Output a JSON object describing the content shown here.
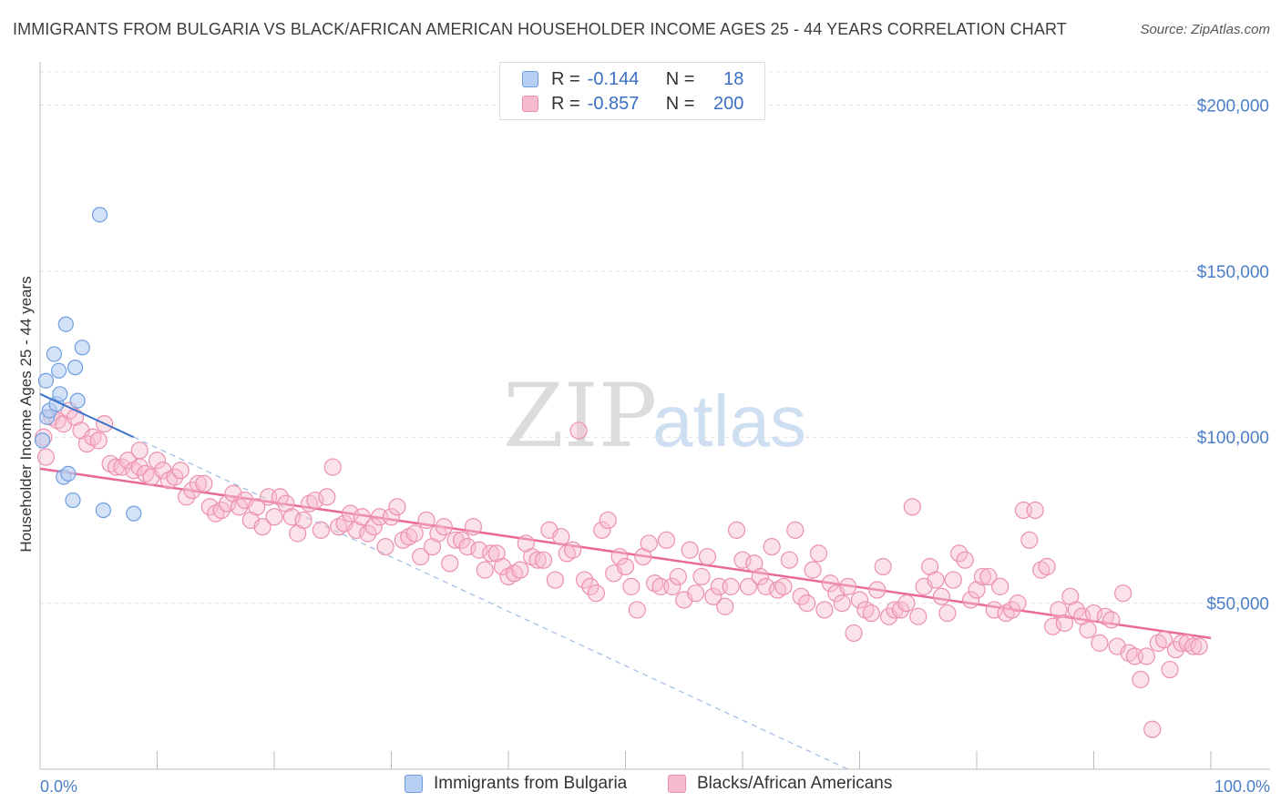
{
  "title": "IMMIGRANTS FROM BULGARIA VS BLACK/AFRICAN AMERICAN HOUSEHOLDER INCOME AGES 25 - 44 YEARS CORRELATION CHART",
  "source": "Source: ZipAtlas.com",
  "watermark": {
    "zip": "ZIP",
    "atlas": "atlas"
  },
  "colors": {
    "blue_fill": "#b7cff2",
    "blue_stroke": "#6f9ee0",
    "blue_line": "#3a73c9",
    "pink_fill": "#f6bccd",
    "pink_stroke": "#ec8fb0",
    "pink_line": "#e8699a",
    "tick_text": "#4a7ec8",
    "grid": "#e2e2e2"
  },
  "legend": {
    "r_label": "R =",
    "n_label": "N =",
    "rows": [
      {
        "series": "Immigrants from Bulgaria",
        "r": "-0.144",
        "n": "18"
      },
      {
        "series": "Blacks/African Americans",
        "r": "-0.857",
        "n": "200"
      }
    ]
  },
  "chart_data": {
    "type": "scatter",
    "title": "IMMIGRANTS FROM BULGARIA VS BLACK/AFRICAN AMERICAN HOUSEHOLDER INCOME AGES 25 - 44 YEARS CORRELATION CHART",
    "xlabel": "",
    "ylabel": "Householder Income Ages 25 - 44 years",
    "xlim": [
      0,
      100
    ],
    "ylim": [
      0,
      210000
    ],
    "x_tick_labels": [
      "0.0%",
      "100.0%"
    ],
    "y_ticks": [
      50000,
      100000,
      150000,
      200000
    ],
    "y_tick_labels": [
      "$50,000",
      "$100,000",
      "$150,000",
      "$200,000"
    ],
    "grid": true,
    "legend_position": "top-center",
    "series": [
      {
        "name": "Immigrants from Bulgaria",
        "color": "#b7cff2",
        "points": [
          [
            0.2,
            99000
          ],
          [
            0.5,
            117000
          ],
          [
            0.6,
            106000
          ],
          [
            0.8,
            108000
          ],
          [
            1.2,
            125000
          ],
          [
            1.4,
            110000
          ],
          [
            1.6,
            120000
          ],
          [
            1.7,
            113000
          ],
          [
            2.0,
            88000
          ],
          [
            2.2,
            134000
          ],
          [
            2.4,
            89000
          ],
          [
            2.8,
            81000
          ],
          [
            3.0,
            121000
          ],
          [
            3.2,
            111000
          ],
          [
            3.6,
            127000
          ],
          [
            5.1,
            167000
          ],
          [
            5.4,
            78000
          ],
          [
            8.0,
            77000
          ]
        ],
        "trend": {
          "x0": 0,
          "y0": 113000,
          "x1": 8.0,
          "y1": 100000,
          "dashed_extension_to": [
            69,
            0
          ]
        }
      },
      {
        "name": "Blacks/African Americans",
        "color": "#f6bccd",
        "points": [
          [
            0.3,
            100000
          ],
          [
            0.5,
            94000
          ],
          [
            1.0,
            106000
          ],
          [
            1.5,
            105000
          ],
          [
            2.0,
            104000
          ],
          [
            2.5,
            108000
          ],
          [
            3.0,
            106000
          ],
          [
            3.5,
            102000
          ],
          [
            4.0,
            98000
          ],
          [
            4.5,
            100000
          ],
          [
            5.0,
            99000
          ],
          [
            5.5,
            104000
          ],
          [
            6.0,
            92000
          ],
          [
            6.5,
            91000
          ],
          [
            7.0,
            91000
          ],
          [
            7.5,
            93000
          ],
          [
            8.0,
            90000
          ],
          [
            8.5,
            91000
          ],
          [
            8.5,
            96000
          ],
          [
            9.0,
            89000
          ],
          [
            9.5,
            88000
          ],
          [
            10.0,
            93000
          ],
          [
            10.5,
            90000
          ],
          [
            11.0,
            87000
          ],
          [
            11.5,
            88000
          ],
          [
            12.0,
            90000
          ],
          [
            12.5,
            82000
          ],
          [
            13.0,
            84000
          ],
          [
            13.5,
            86000
          ],
          [
            14.0,
            86000
          ],
          [
            14.5,
            79000
          ],
          [
            15.0,
            77000
          ],
          [
            15.5,
            78000
          ],
          [
            16.0,
            80000
          ],
          [
            16.5,
            83000
          ],
          [
            17.0,
            79000
          ],
          [
            17.5,
            81000
          ],
          [
            18.0,
            75000
          ],
          [
            18.5,
            79000
          ],
          [
            19.0,
            73000
          ],
          [
            19.5,
            82000
          ],
          [
            20.0,
            76000
          ],
          [
            20.5,
            82000
          ],
          [
            21.0,
            80000
          ],
          [
            21.5,
            76000
          ],
          [
            22.0,
            71000
          ],
          [
            22.5,
            75000
          ],
          [
            23.0,
            80000
          ],
          [
            23.5,
            81000
          ],
          [
            24.0,
            72000
          ],
          [
            24.5,
            82000
          ],
          [
            25.0,
            91000
          ],
          [
            25.5,
            73000
          ],
          [
            26.0,
            74000
          ],
          [
            26.5,
            77000
          ],
          [
            27.0,
            72000
          ],
          [
            27.5,
            76000
          ],
          [
            28.0,
            71000
          ],
          [
            28.5,
            73000
          ],
          [
            29.0,
            76000
          ],
          [
            29.5,
            67000
          ],
          [
            30.0,
            76000
          ],
          [
            30.5,
            79000
          ],
          [
            31.0,
            69000
          ],
          [
            31.5,
            70000
          ],
          [
            32.0,
            71000
          ],
          [
            32.5,
            64000
          ],
          [
            33.0,
            75000
          ],
          [
            33.5,
            67000
          ],
          [
            34.0,
            71000
          ],
          [
            34.5,
            73000
          ],
          [
            35.0,
            62000
          ],
          [
            35.5,
            69000
          ],
          [
            36.0,
            69000
          ],
          [
            36.5,
            67000
          ],
          [
            37.0,
            73000
          ],
          [
            37.5,
            66000
          ],
          [
            38.0,
            60000
          ],
          [
            38.5,
            65000
          ],
          [
            39.0,
            65000
          ],
          [
            39.5,
            61000
          ],
          [
            40.0,
            58000
          ],
          [
            40.5,
            59000
          ],
          [
            41.0,
            60000
          ],
          [
            41.5,
            68000
          ],
          [
            42.0,
            64000
          ],
          [
            42.5,
            63000
          ],
          [
            43.0,
            63000
          ],
          [
            43.5,
            72000
          ],
          [
            44.0,
            57000
          ],
          [
            44.5,
            70000
          ],
          [
            45.0,
            65000
          ],
          [
            45.5,
            66000
          ],
          [
            46.0,
            102000
          ],
          [
            46.5,
            57000
          ],
          [
            47.0,
            55000
          ],
          [
            47.5,
            53000
          ],
          [
            48.0,
            72000
          ],
          [
            48.5,
            75000
          ],
          [
            49.0,
            59000
          ],
          [
            49.5,
            64000
          ],
          [
            50.0,
            61000
          ],
          [
            50.5,
            55000
          ],
          [
            51.0,
            48000
          ],
          [
            51.5,
            64000
          ],
          [
            52.0,
            68000
          ],
          [
            52.5,
            56000
          ],
          [
            53.0,
            55000
          ],
          [
            53.5,
            69000
          ],
          [
            54.0,
            55000
          ],
          [
            54.5,
            58000
          ],
          [
            55.0,
            51000
          ],
          [
            55.5,
            66000
          ],
          [
            56.0,
            53000
          ],
          [
            56.5,
            58000
          ],
          [
            57.0,
            64000
          ],
          [
            57.5,
            52000
          ],
          [
            58.0,
            55000
          ],
          [
            58.5,
            49000
          ],
          [
            59.0,
            55000
          ],
          [
            59.5,
            72000
          ],
          [
            60.0,
            63000
          ],
          [
            60.5,
            55000
          ],
          [
            61.0,
            62000
          ],
          [
            61.5,
            58000
          ],
          [
            62.0,
            55000
          ],
          [
            62.5,
            67000
          ],
          [
            63.0,
            54000
          ],
          [
            63.5,
            55000
          ],
          [
            64.0,
            63000
          ],
          [
            64.5,
            72000
          ],
          [
            65.0,
            52000
          ],
          [
            65.5,
            50000
          ],
          [
            66.0,
            60000
          ],
          [
            66.5,
            65000
          ],
          [
            67.0,
            48000
          ],
          [
            67.5,
            56000
          ],
          [
            68.0,
            53000
          ],
          [
            68.5,
            50000
          ],
          [
            69.0,
            55000
          ],
          [
            69.5,
            41000
          ],
          [
            70.0,
            51000
          ],
          [
            70.5,
            48000
          ],
          [
            71.0,
            47000
          ],
          [
            71.5,
            54000
          ],
          [
            72.0,
            61000
          ],
          [
            72.5,
            46000
          ],
          [
            73.0,
            48000
          ],
          [
            73.5,
            48000
          ],
          [
            74.0,
            50000
          ],
          [
            74.5,
            79000
          ],
          [
            75.0,
            46000
          ],
          [
            75.5,
            55000
          ],
          [
            76.0,
            61000
          ],
          [
            76.5,
            57000
          ],
          [
            77.0,
            52000
          ],
          [
            77.5,
            47000
          ],
          [
            78.0,
            57000
          ],
          [
            78.5,
            65000
          ],
          [
            79.0,
            63000
          ],
          [
            79.5,
            51000
          ],
          [
            80.0,
            54000
          ],
          [
            80.5,
            58000
          ],
          [
            81.0,
            58000
          ],
          [
            81.5,
            48000
          ],
          [
            82.0,
            55000
          ],
          [
            82.5,
            47000
          ],
          [
            83.0,
            48000
          ],
          [
            83.5,
            50000
          ],
          [
            84.0,
            78000
          ],
          [
            84.5,
            69000
          ],
          [
            85.0,
            78000
          ],
          [
            85.5,
            60000
          ],
          [
            86.0,
            61000
          ],
          [
            86.5,
            43000
          ],
          [
            87.0,
            48000
          ],
          [
            87.5,
            44000
          ],
          [
            88.0,
            52000
          ],
          [
            88.5,
            48000
          ],
          [
            89.0,
            46000
          ],
          [
            89.5,
            42000
          ],
          [
            90.0,
            47000
          ],
          [
            90.5,
            38000
          ],
          [
            91.0,
            46000
          ],
          [
            91.5,
            45000
          ],
          [
            92.0,
            37000
          ],
          [
            92.5,
            53000
          ],
          [
            93.0,
            35000
          ],
          [
            93.5,
            34000
          ],
          [
            94.0,
            27000
          ],
          [
            94.5,
            34000
          ],
          [
            95.0,
            12000
          ],
          [
            95.5,
            38000
          ],
          [
            96.0,
            39000
          ],
          [
            96.5,
            30000
          ],
          [
            97.0,
            36000
          ],
          [
            97.5,
            38000
          ],
          [
            98.0,
            38000
          ],
          [
            98.5,
            37000
          ],
          [
            99.0,
            37000
          ]
        ],
        "trend": {
          "x0": 0,
          "y0": 90500,
          "x1": 100,
          "y1": 39500
        }
      }
    ]
  }
}
